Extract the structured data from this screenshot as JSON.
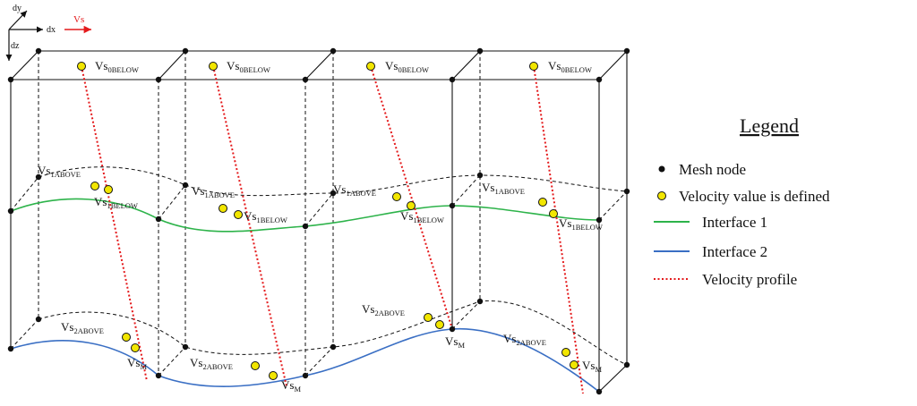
{
  "axes": {
    "dy": "dy",
    "dx": "dx",
    "dz": "dz",
    "vs": "Vs"
  },
  "columns": [
    {
      "vs0": "0BELOW",
      "vs1a": "1ABOVE",
      "vs1b": "1BELOW",
      "vs2a": "2ABOVE",
      "vsm": "M"
    },
    {
      "vs0": "0BELOW",
      "vs1a": "1ABOVE",
      "vs1b": "1BELOW",
      "vs2a": "2ABOVE",
      "vsm": "M"
    },
    {
      "vs0": "0BELOW",
      "vs1a": "1ABOVE",
      "vs1b": "1BELOW",
      "vs2a": "2ABOVE",
      "vsm": "M"
    },
    {
      "vs0": "0BELOW",
      "vs1a": "1ABOVE",
      "vs1b": "1BELOW",
      "vs2a": "2ABOVE",
      "vsm": "M"
    }
  ],
  "vs_prefix": "Vs",
  "legend": {
    "title": "Legend",
    "mesh_node": "Mesh node",
    "velocity_defined": "Velocity value is defined",
    "interface1": "Interface 1",
    "interface2": "Interface 2",
    "velocity_profile": "Velocity profile"
  },
  "colors": {
    "interface1": "#2db34a",
    "interface2": "#3a6fc4",
    "profile": "#e41a1c",
    "velocity_point": "#f2e600",
    "axis_vs": "#e41a1c"
  }
}
